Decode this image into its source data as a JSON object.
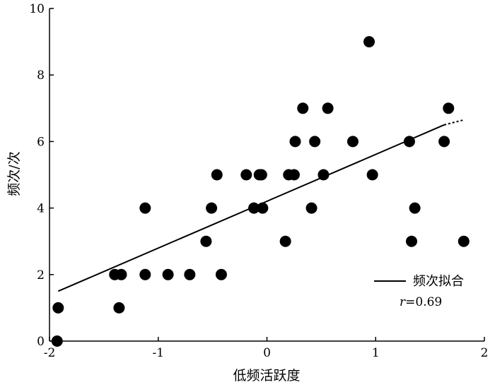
{
  "chart_data": {
    "type": "scatter",
    "xlabel": "低频活跃度",
    "ylabel": "频次/次",
    "xlim": [
      -2,
      2
    ],
    "ylim": [
      0,
      10
    ],
    "xticks": [
      -2,
      -1,
      0,
      1,
      2
    ],
    "xtick_labels": [
      "-2",
      "-1",
      "0",
      "1",
      "2"
    ],
    "yticks": [
      0,
      2,
      4,
      6,
      8,
      10
    ],
    "ytick_labels": [
      "0",
      "2",
      "4",
      "6",
      "8",
      "10"
    ],
    "grid": false,
    "legend_position": "bottom-right",
    "marker_color": "#000000",
    "series": [
      {
        "points": [
          {
            "x": -1.93,
            "y": 0
          },
          {
            "x": -1.92,
            "y": 1
          },
          {
            "x": -1.4,
            "y": 2
          },
          {
            "x": -1.34,
            "y": 2
          },
          {
            "x": -1.36,
            "y": 1
          },
          {
            "x": -1.12,
            "y": 4
          },
          {
            "x": -1.12,
            "y": 2
          },
          {
            "x": -0.91,
            "y": 2
          },
          {
            "x": -0.71,
            "y": 2
          },
          {
            "x": -0.56,
            "y": 3
          },
          {
            "x": -0.51,
            "y": 4
          },
          {
            "x": -0.46,
            "y": 5
          },
          {
            "x": -0.42,
            "y": 2
          },
          {
            "x": -0.19,
            "y": 5
          },
          {
            "x": -0.12,
            "y": 4
          },
          {
            "x": -0.07,
            "y": 5
          },
          {
            "x": -0.05,
            "y": 5
          },
          {
            "x": -0.04,
            "y": 4
          },
          {
            "x": 0.17,
            "y": 3
          },
          {
            "x": 0.2,
            "y": 5
          },
          {
            "x": 0.25,
            "y": 5
          },
          {
            "x": 0.26,
            "y": 6
          },
          {
            "x": 0.33,
            "y": 7
          },
          {
            "x": 0.41,
            "y": 4
          },
          {
            "x": 0.44,
            "y": 6
          },
          {
            "x": 0.52,
            "y": 5
          },
          {
            "x": 0.56,
            "y": 7
          },
          {
            "x": 0.79,
            "y": 6
          },
          {
            "x": 0.94,
            "y": 9
          },
          {
            "x": 0.97,
            "y": 5
          },
          {
            "x": 1.31,
            "y": 6
          },
          {
            "x": 1.33,
            "y": 3
          },
          {
            "x": 1.36,
            "y": 4
          },
          {
            "x": 1.63,
            "y": 6
          },
          {
            "x": 1.67,
            "y": 7
          },
          {
            "x": 1.81,
            "y": 3
          }
        ]
      }
    ],
    "fit_line": {
      "name": "频次拟合",
      "solid": [
        {
          "x": -1.92,
          "y": 1.5
        },
        {
          "x": 1.63,
          "y": 6.5
        }
      ],
      "dashed": [
        {
          "x": 1.63,
          "y": 6.5
        },
        {
          "x": 1.81,
          "y": 6.65
        }
      ]
    },
    "annotation": {
      "r_symbol": "r",
      "r_value": "=0.69"
    }
  }
}
